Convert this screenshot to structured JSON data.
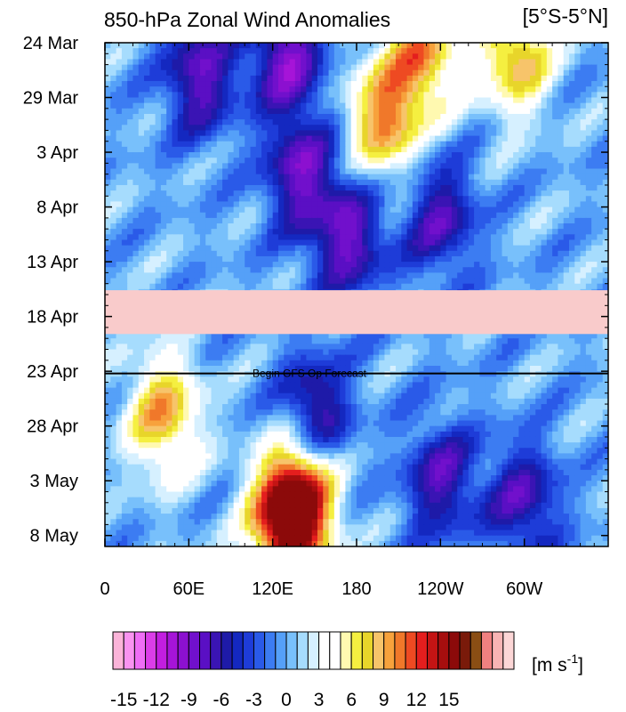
{
  "chart_data": {
    "type": "heatmap",
    "title": "850-hPa Zonal Wind Anomalies",
    "region_label": "[5°S-5°N]",
    "x_ticks": [
      "0",
      "60E",
      "120E",
      "180",
      "120W",
      "60W"
    ],
    "y_ticks": [
      "24 Mar",
      "29 Mar",
      "3 Apr",
      "8 Apr",
      "13 Apr",
      "18 Apr",
      "23 Apr",
      "28 Apr",
      "3 May",
      "8 May"
    ],
    "x_range_deg_east": [
      0,
      360
    ],
    "y_range": [
      "24 Mar",
      "9 May"
    ],
    "missing_band": [
      "15 Apr",
      "19 Apr"
    ],
    "forecast_start": "23 Apr",
    "forecast_label": "Begin GFS Op Forecast",
    "colorbar": {
      "ticks": [
        "-15",
        "-12",
        "-9",
        "-6",
        "-3",
        "0",
        "3",
        "6",
        "9",
        "12",
        "15"
      ],
      "units_base": "[m s",
      "units_exp": "-1",
      "units_close": "]",
      "levels": [
        -15,
        -14,
        -13,
        -12,
        -11,
        -10,
        -9,
        -8,
        -7,
        -6,
        -5,
        -4,
        -3,
        -2,
        -1,
        0,
        1,
        2,
        3,
        4,
        5,
        6,
        7,
        8,
        9,
        10,
        11,
        12,
        13,
        14,
        15
      ],
      "colors": [
        "#fbb4d9",
        "#f993f0",
        "#ef6df5",
        "#db3de8",
        "#c21ee0",
        "#a614d8",
        "#8c10d0",
        "#7110cc",
        "#5a0fc4",
        "#3a14b4",
        "#1e1aa8",
        "#1428c0",
        "#1e3cd8",
        "#2a5ae8",
        "#3c7cf2",
        "#55a0f8",
        "#78c0fb",
        "#a6dcfd",
        "#d6f0ff",
        "#ffffff",
        "#ffffff",
        "#fff9b0",
        "#f5ef40",
        "#e8d52a",
        "#f7c46a",
        "#f7a23c",
        "#f0782a",
        "#ee4a22",
        "#e41e1e",
        "#c41414",
        "#a60e0e",
        "#8c0a0a",
        "#7a1a0a",
        "#8a4e14",
        "#f08080",
        "#f8b4b4",
        "#fcd6d6"
      ]
    },
    "features": [
      {
        "name": "westerly",
        "lon": 130,
        "date_days": 44,
        "value": 14
      },
      {
        "name": "westerly",
        "lon": 140,
        "date_days": 41,
        "value": 11
      },
      {
        "name": "westerly",
        "lon": 200,
        "date_days": 7,
        "value": 10
      },
      {
        "name": "westerly",
        "lon": 228,
        "date_days": 1,
        "value": 9
      },
      {
        "name": "westerly",
        "lon": 294,
        "date_days": 1,
        "value": 9
      },
      {
        "name": "westerly",
        "lon": 42,
        "date_days": 34,
        "value": 9
      },
      {
        "name": "easterly",
        "lon": 68,
        "date_days": 3,
        "value": -8
      },
      {
        "name": "easterly",
        "lon": 130,
        "date_days": 1,
        "value": -9
      },
      {
        "name": "easterly",
        "lon": 140,
        "date_days": 12,
        "value": -8
      },
      {
        "name": "easterly",
        "lon": 175,
        "date_days": 18,
        "value": -8
      },
      {
        "name": "easterly",
        "lon": 240,
        "date_days": 16,
        "value": -7
      },
      {
        "name": "easterly",
        "lon": 150,
        "date_days": 34,
        "value": -8
      },
      {
        "name": "easterly",
        "lon": 240,
        "date_days": 40,
        "value": -7
      },
      {
        "name": "easterly",
        "lon": 300,
        "date_days": 42,
        "value": -7
      }
    ]
  }
}
